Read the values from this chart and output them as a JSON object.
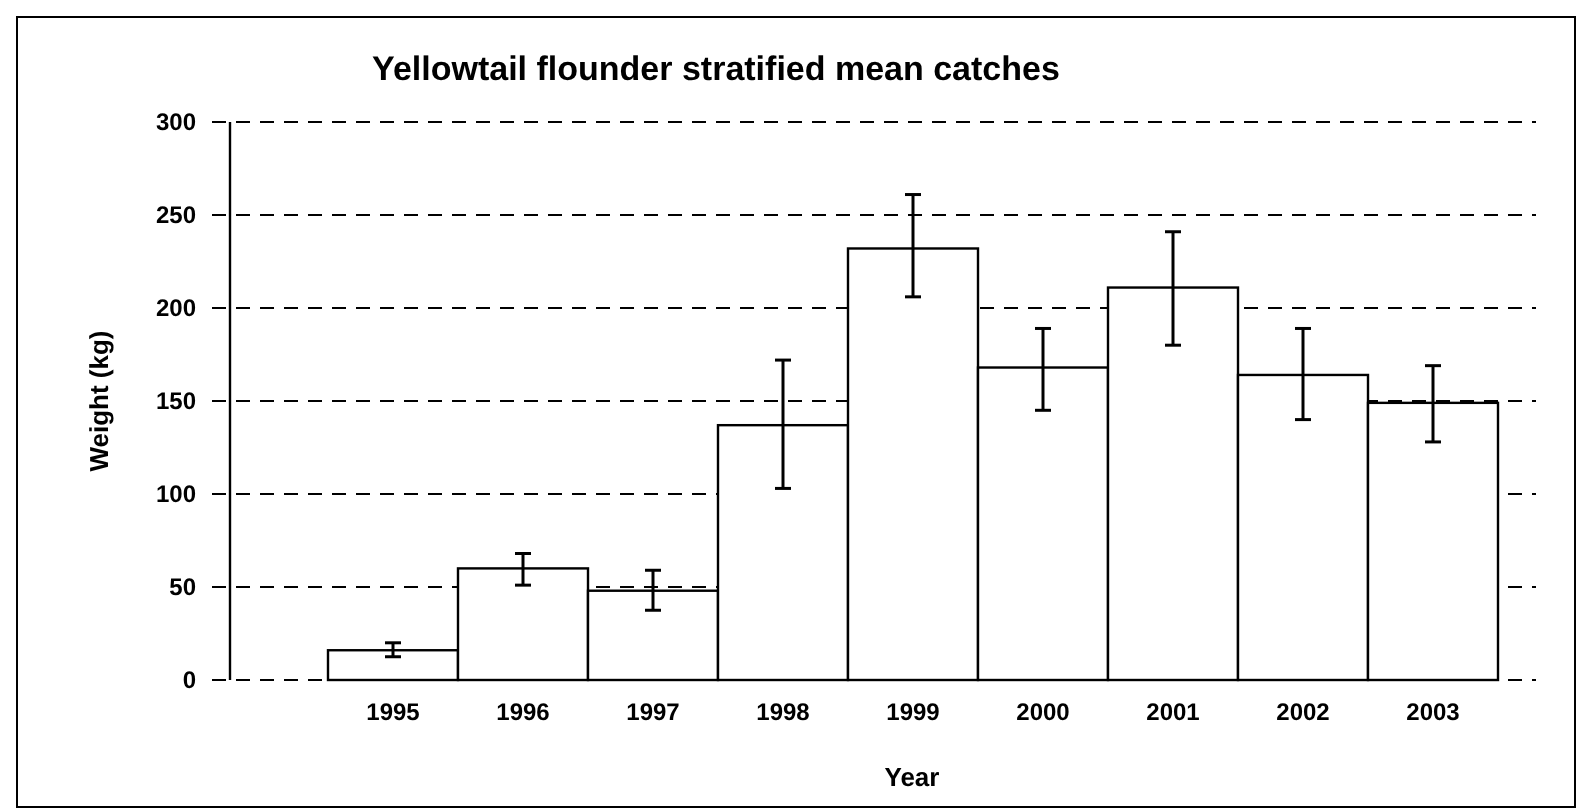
{
  "chart_data": {
    "type": "bar",
    "title": "Yellowtail flounder stratified mean catches",
    "xlabel": "Year",
    "ylabel": "Weight (kg)",
    "categories": [
      "1995",
      "1996",
      "1997",
      "1998",
      "1999",
      "2000",
      "2001",
      "2002",
      "2003"
    ],
    "values": [
      16,
      60,
      48,
      137,
      232,
      168,
      211,
      164,
      149
    ],
    "errors": [
      [
        12.5,
        20
      ],
      [
        51,
        68
      ],
      [
        37.5,
        59
      ],
      [
        103,
        172
      ],
      [
        206,
        261
      ],
      [
        145,
        189
      ],
      [
        180,
        241
      ],
      [
        140,
        189
      ],
      [
        128,
        169
      ]
    ],
    "color": "#ffffff",
    "ylim": [
      0,
      300
    ],
    "yticks": [
      0,
      50,
      100,
      150,
      200,
      250,
      300
    ],
    "grid": "y"
  }
}
